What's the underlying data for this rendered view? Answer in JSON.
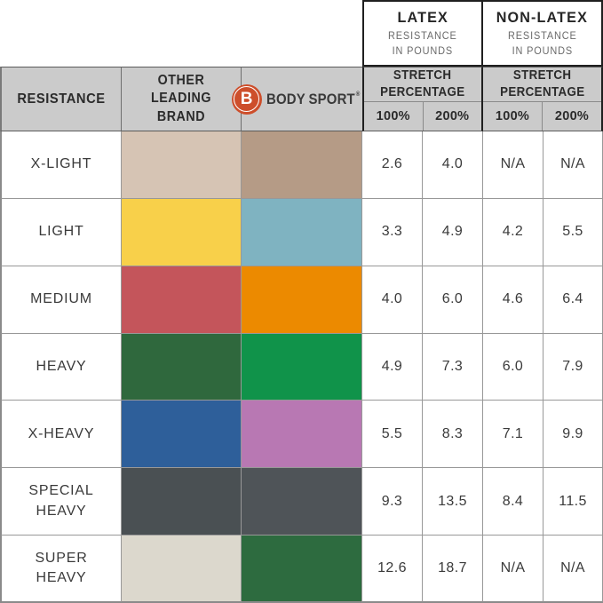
{
  "top_header": {
    "latex": {
      "title": "LATEX",
      "sub1": "RESISTANCE",
      "sub2": "IN POUNDS"
    },
    "nonlatex": {
      "title": "NON-LATEX",
      "sub1": "RESISTANCE",
      "sub2": "IN POUNDS"
    }
  },
  "band": {
    "resistance": "RESISTANCE",
    "other_line1": "OTHER",
    "other_line2": "LEADING",
    "other_line3": "BRAND",
    "brand": {
      "b": "B",
      "body": "BODY",
      "sport": "SPORT",
      "reg": "®"
    },
    "stretch_line1": "STRETCH",
    "stretch_line2": "PERCENTAGE",
    "pct100": "100%",
    "pct200": "200%"
  },
  "chart_data": {
    "type": "table",
    "columns": [
      "RESISTANCE",
      "OTHER LEADING BRAND",
      "BODY SPORT",
      "LATEX 100%",
      "LATEX 200%",
      "NON-LATEX 100%",
      "NON-LATEX 200%"
    ],
    "rows": [
      {
        "label": "X-LIGHT",
        "other_color": "#D6C4B4",
        "bodysport_color": "#B59B86",
        "latex_100": "2.6",
        "latex_200": "4.0",
        "nonlatex_100": "N/A",
        "nonlatex_200": "N/A"
      },
      {
        "label": "LIGHT",
        "other_color": "#F8D04A",
        "bodysport_color": "#7FB3C1",
        "latex_100": "3.3",
        "latex_200": "4.9",
        "nonlatex_100": "4.2",
        "nonlatex_200": "5.5"
      },
      {
        "label": "MEDIUM",
        "other_color": "#C4555B",
        "bodysport_color": "#EC8A00",
        "latex_100": "4.0",
        "latex_200": "6.0",
        "nonlatex_100": "4.6",
        "nonlatex_200": "6.4"
      },
      {
        "label": "HEAVY",
        "other_color": "#2F683D",
        "bodysport_color": "#10934A",
        "latex_100": "4.9",
        "latex_200": "7.3",
        "nonlatex_100": "6.0",
        "nonlatex_200": "7.9"
      },
      {
        "label": "X-HEAVY",
        "other_color": "#2E5F9A",
        "bodysport_color": "#B878B3",
        "latex_100": "5.5",
        "latex_200": "8.3",
        "nonlatex_100": "7.1",
        "nonlatex_200": "9.9"
      },
      {
        "label": "SPECIAL HEAVY",
        "other_color": "#4A5053",
        "bodysport_color": "#4F5458",
        "latex_100": "9.3",
        "latex_200": "13.5",
        "nonlatex_100": "8.4",
        "nonlatex_200": "11.5"
      },
      {
        "label": "SUPER HEAVY",
        "other_color": "#DCD8CD",
        "bodysport_color": "#2D6B3F",
        "latex_100": "12.6",
        "latex_200": "18.7",
        "nonlatex_100": "N/A",
        "nonlatex_200": "N/A"
      }
    ]
  },
  "colors": {
    "band_bg": "#CBCBCB",
    "logo_orange": "#CD4E2B",
    "grid_line": "#989898",
    "group_border": "#1F1F1F",
    "text_dark": "#2B2B2B",
    "text_gray": "#6A6A6A"
  }
}
